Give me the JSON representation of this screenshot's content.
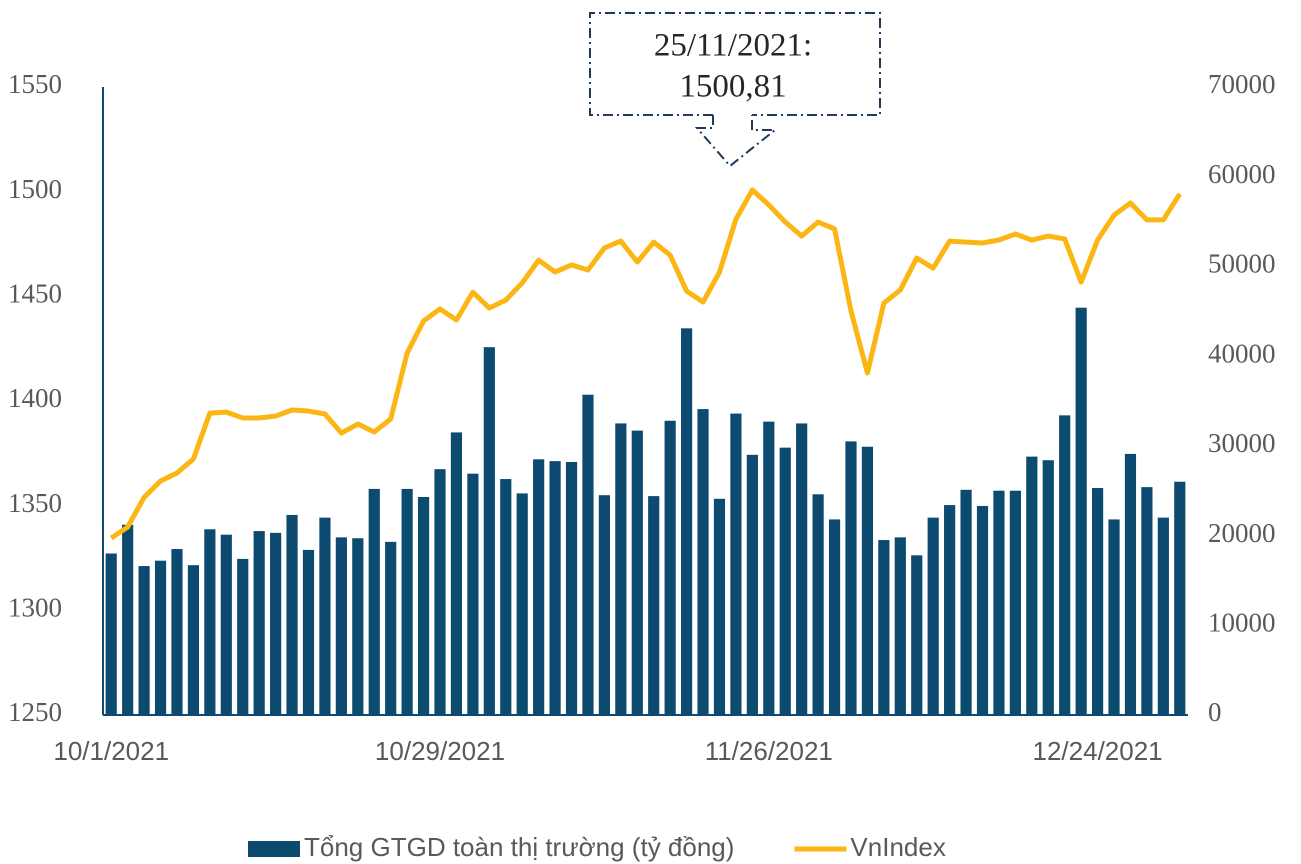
{
  "chart_data": {
    "type": "bar",
    "annotation": [
      "25/11/2021:",
      "1500,81"
    ],
    "categories": [
      "10/1/2021",
      null,
      null,
      null,
      null,
      null,
      null,
      null,
      null,
      null,
      null,
      null,
      null,
      null,
      null,
      null,
      null,
      null,
      null,
      null,
      "10/29/2021",
      null,
      null,
      null,
      null,
      null,
      null,
      null,
      null,
      null,
      null,
      null,
      null,
      null,
      null,
      null,
      null,
      null,
      null,
      null,
      "11/26/2021",
      null,
      null,
      null,
      null,
      null,
      null,
      null,
      null,
      null,
      null,
      null,
      null,
      null,
      null,
      null,
      null,
      null,
      null,
      null,
      "12/24/2021",
      null,
      null,
      null,
      null,
      null
    ],
    "series": [
      {
        "name": "Tổng GTGD toàn thị trường (tỷ đồng)",
        "type": "bar",
        "axis": "y2",
        "color": "#0c4a70",
        "values": [
          18000,
          21200,
          16600,
          17200,
          18500,
          16700,
          20700,
          20100,
          17400,
          20500,
          20300,
          22300,
          18400,
          22000,
          19800,
          19700,
          25200,
          19300,
          25200,
          24300,
          27400,
          31500,
          26900,
          41000,
          26300,
          24700,
          28500,
          28300,
          28200,
          35700,
          24500,
          32500,
          31700,
          24400,
          32800,
          43100,
          34100,
          24100,
          33600,
          29000,
          32700,
          29800,
          32500,
          24600,
          21800,
          30500,
          29900,
          19500,
          19800,
          17800,
          22000,
          23400,
          25100,
          23300,
          25000,
          25000,
          28800,
          28400,
          33400,
          45400,
          25300,
          21800,
          29100,
          25400,
          22000,
          26000
        ]
      },
      {
        "name": "VnIndex",
        "type": "line",
        "color": "#fbb614",
        "values": [
          1334.5,
          1339.8,
          1354,
          1361.8,
          1365.6,
          1372.3,
          1394.2,
          1394.7,
          1391.9,
          1391.9,
          1392.8,
          1395.7,
          1395.2,
          1393.8,
          1384.7,
          1389,
          1385.2,
          1391.4,
          1422.9,
          1438.2,
          1444,
          1438.7,
          1452,
          1444.4,
          1448.2,
          1456.4,
          1467.3,
          1461.6,
          1465,
          1462.6,
          1473.1,
          1476.4,
          1466.4,
          1475.9,
          1469.7,
          1452.5,
          1447.3,
          1461.5,
          1486.8,
          1500.81,
          1493.7,
          1485.5,
          1478.8,
          1485.5,
          1482.2,
          1443,
          1413.4,
          1446.8,
          1453,
          1468.3,
          1463.5,
          1476.4,
          1475.9,
          1475.5,
          1476.9,
          1479.8,
          1476.9,
          1478.8,
          1477.4,
          1456.8,
          1476.9,
          1488.8,
          1494.6,
          1486.5,
          1486.5,
          1498.9
        ]
      }
    ],
    "ylim": [
      1250,
      1550
    ],
    "yticks": [
      1250,
      1300,
      1350,
      1400,
      1450,
      1500,
      1550
    ],
    "y2lim": [
      0,
      70000
    ],
    "y2ticks": [
      0,
      10000,
      20000,
      30000,
      40000,
      50000,
      60000,
      70000
    ],
    "legend": "bottom"
  }
}
